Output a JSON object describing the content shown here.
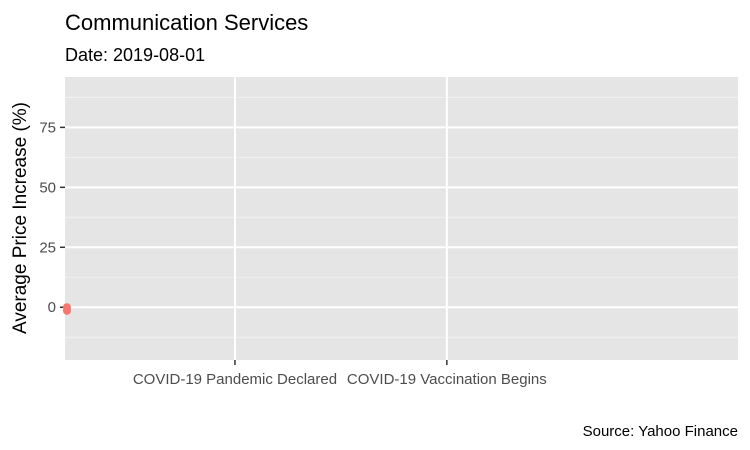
{
  "chart_data": {
    "type": "scatter",
    "title": "Communication Services",
    "subtitle": "Date: 2019-08-01",
    "xlabel": "",
    "ylabel": "Average Price Increase (%)",
    "caption": "Source: Yahoo Finance",
    "xlim": [
      "2019-08-01",
      "2021-12-31"
    ],
    "ylim": [
      -22,
      96
    ],
    "y_ticks": [
      0,
      25,
      50,
      75
    ],
    "x_ticks": [
      {
        "date": "2020-03-11",
        "label": "COVID-19 Pandemic Declared"
      },
      {
        "date": "2020-12-14",
        "label": "COVID-19 Vaccination Begins"
      }
    ],
    "grid": true,
    "legend": "none",
    "series": [
      {
        "name": "Communication Services",
        "color": "#f8766d",
        "points": [
          {
            "x": "2019-08-01",
            "y": 0.0
          },
          {
            "x": "2019-08-01",
            "y": -1.5
          }
        ]
      }
    ]
  }
}
